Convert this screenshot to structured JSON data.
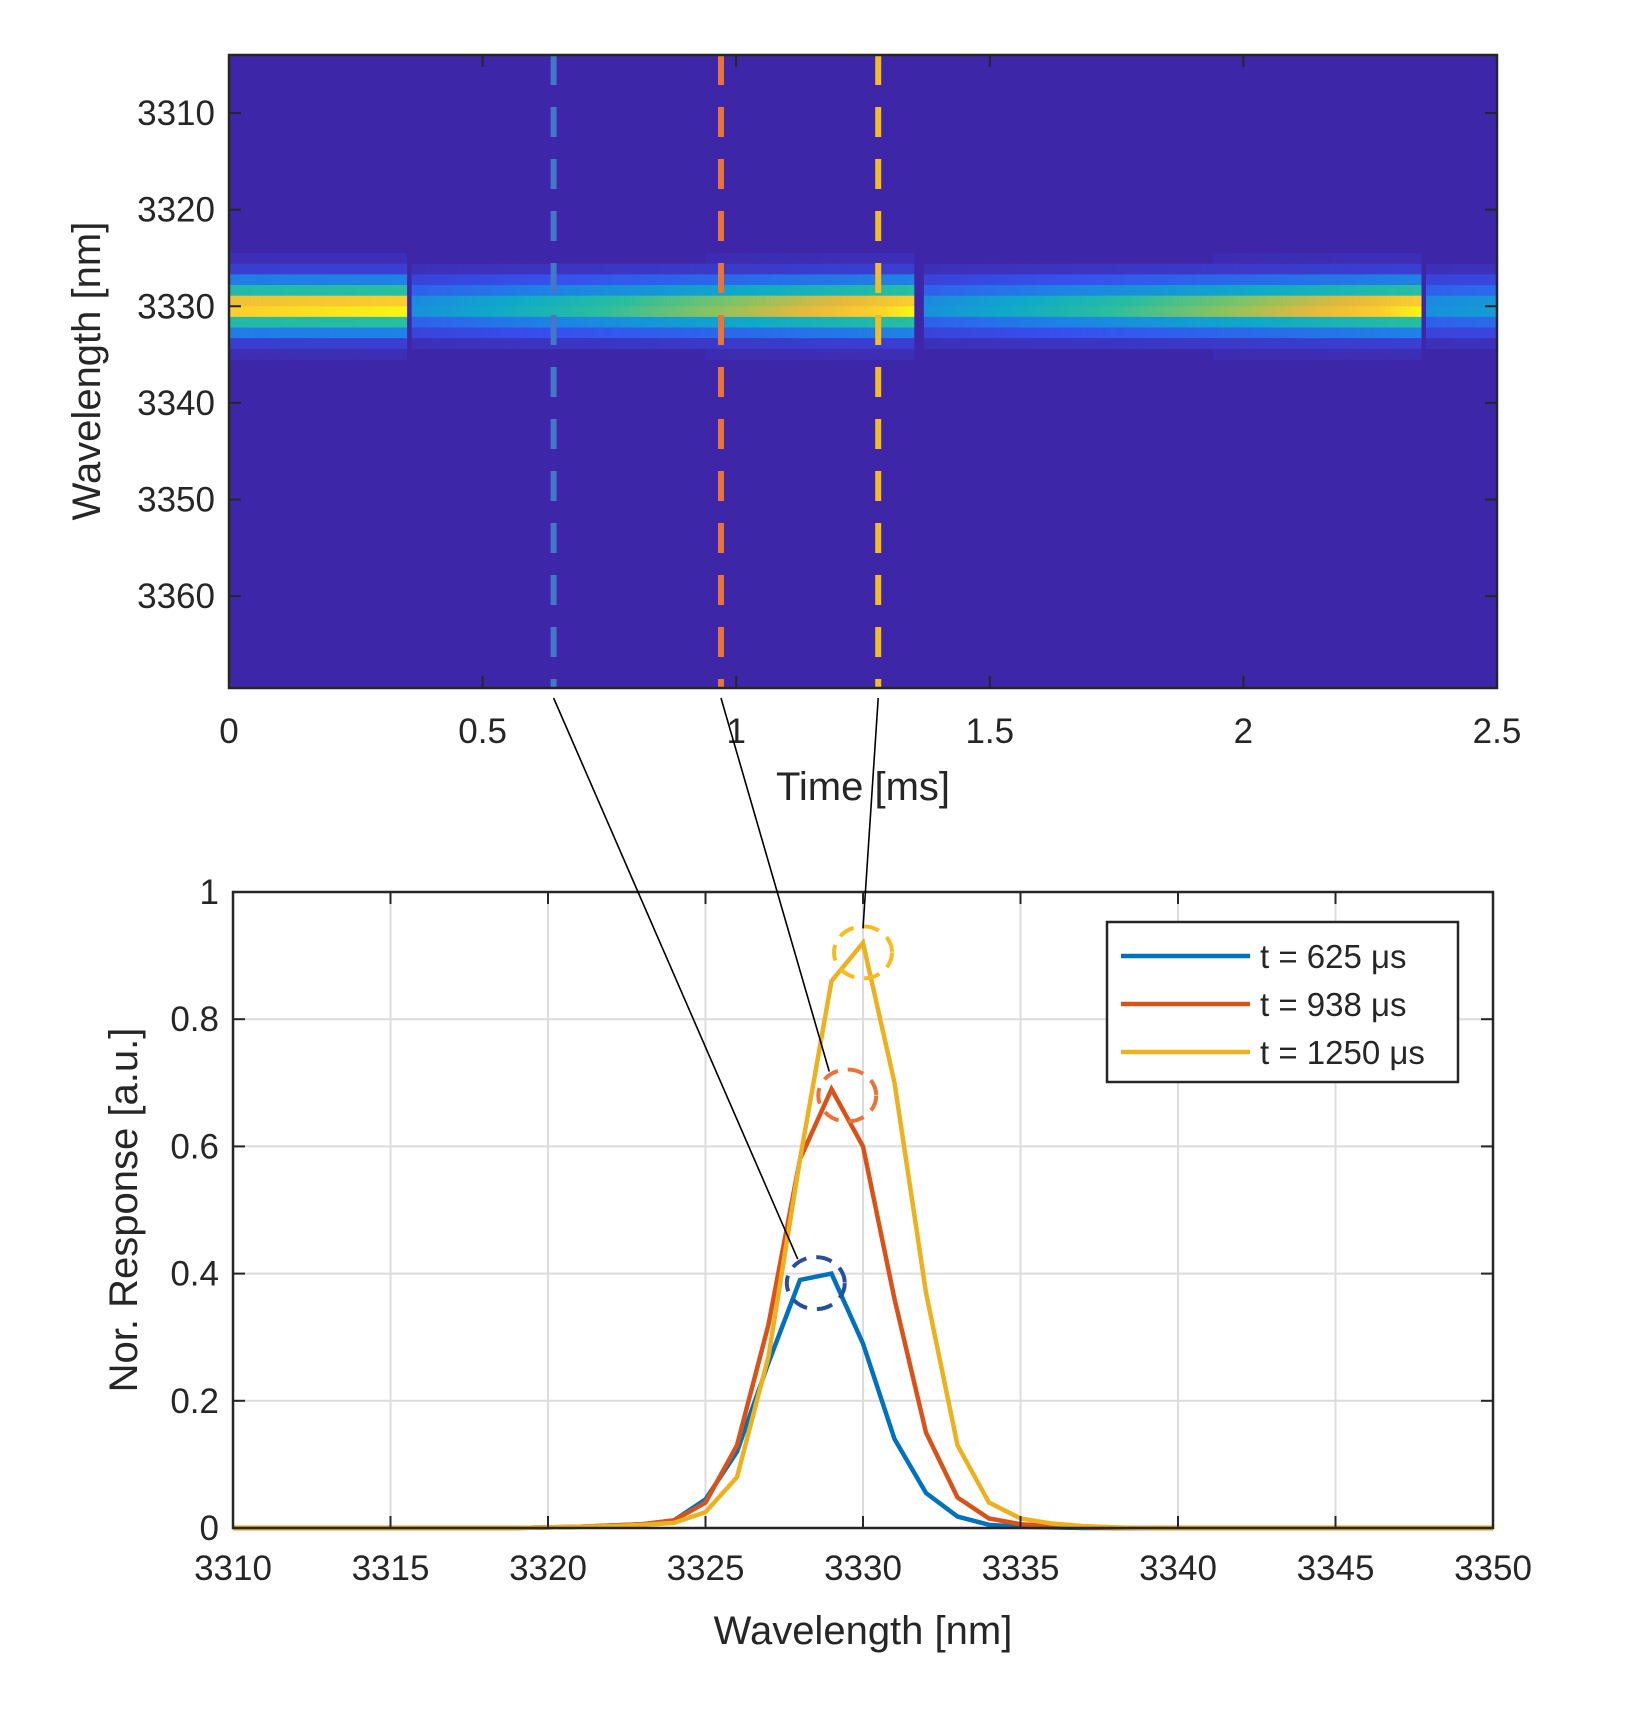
{
  "chart_data": [
    {
      "type": "heatmap",
      "xlabel": "Time [ms]",
      "ylabel": "Wavelength [nm]",
      "xlim": [
        0,
        2.5
      ],
      "ylim": [
        3304,
        3369.5
      ],
      "y_reversed": true,
      "xticks": [
        "0",
        "0.5",
        "1",
        "1.5",
        "2",
        "2.5"
      ],
      "xtick_values": [
        0,
        0.5,
        1,
        1.5,
        2,
        2.5
      ],
      "yticks": [
        "3310",
        "3320",
        "3330",
        "3340",
        "3350",
        "3360"
      ],
      "ytick_values": [
        3310,
        3320,
        3330,
        3340,
        3350,
        3360
      ],
      "colormap": "parula",
      "band_center_nm": 3330,
      "pulses": [
        {
          "start_ms": 0,
          "end_ms": 0.35,
          "intensity_start": 0.95,
          "intensity_end": 1.0
        },
        {
          "start_ms": 0.36,
          "end_ms": 1.35,
          "intensity_start": 0.4,
          "intensity_end": 1.0
        },
        {
          "start_ms": 1.37,
          "end_ms": 2.35,
          "intensity_start": 0.4,
          "intensity_end": 1.0
        },
        {
          "start_ms": 2.36,
          "end_ms": 2.5,
          "intensity_start": 0.4,
          "intensity_end": 0.45
        }
      ],
      "markers": [
        {
          "time_ms": 0.64,
          "color": "#4477c8",
          "style": "dashed"
        },
        {
          "time_ms": 0.97,
          "color": "#e8743a",
          "style": "dashed"
        },
        {
          "time_ms": 1.28,
          "color": "#f5bd1f",
          "style": "dashed"
        }
      ]
    },
    {
      "type": "line",
      "xlabel": "Wavelength [nm]",
      "ylabel": "Nor. Response [a.u.]",
      "xlim": [
        3310,
        3350
      ],
      "ylim": [
        0,
        1
      ],
      "grid": true,
      "legend_position": "top-right",
      "xticks": [
        "3310",
        "3315",
        "3320",
        "3325",
        "3330",
        "3335",
        "3340",
        "3345",
        "3350"
      ],
      "xtick_values": [
        3310,
        3315,
        3320,
        3325,
        3330,
        3335,
        3340,
        3345,
        3350
      ],
      "yticks": [
        "0",
        "0.2",
        "0.4",
        "0.6",
        "0.8",
        "1"
      ],
      "ytick_values": [
        0,
        0.2,
        0.4,
        0.6,
        0.8,
        1
      ],
      "x": [
        3310,
        3311,
        3312,
        3313,
        3314,
        3315,
        3316,
        3317,
        3318,
        3319,
        3320,
        3321,
        3322,
        3323,
        3324,
        3325,
        3326,
        3327,
        3328,
        3329,
        3330,
        3331,
        3332,
        3333,
        3334,
        3335,
        3336,
        3337,
        3338,
        3339,
        3340,
        3341,
        3342,
        3343,
        3344,
        3345,
        3346,
        3347,
        3348,
        3349,
        3350
      ],
      "series": [
        {
          "name": "t = 625 μs",
          "color": "#0072bd",
          "values": [
            0,
            0,
            0,
            0,
            0,
            0,
            0,
            0,
            0,
            0,
            0.001,
            0.002,
            0.004,
            0.006,
            0.012,
            0.045,
            0.12,
            0.26,
            0.39,
            0.4,
            0.29,
            0.14,
            0.055,
            0.018,
            0.005,
            0.002,
            0.001,
            0,
            0,
            0,
            0,
            0,
            0,
            0,
            0,
            0,
            0,
            0,
            0,
            0,
            0
          ]
        },
        {
          "name": "t = 938 μs",
          "color": "#d95319",
          "values": [
            0,
            0,
            0,
            0,
            0,
            0,
            0,
            0,
            0,
            0,
            0.001,
            0.002,
            0.004,
            0.006,
            0.012,
            0.04,
            0.13,
            0.32,
            0.58,
            0.69,
            0.6,
            0.36,
            0.15,
            0.048,
            0.015,
            0.006,
            0.003,
            0.001,
            0,
            0,
            0,
            0,
            0,
            0,
            0,
            0,
            0,
            0,
            0,
            0,
            0
          ]
        },
        {
          "name": "t = 1250 μs",
          "color": "#edb120",
          "values": [
            0,
            0,
            0,
            0,
            0,
            0,
            0,
            0,
            0,
            0,
            0.001,
            0.002,
            0.003,
            0.005,
            0.008,
            0.025,
            0.08,
            0.27,
            0.58,
            0.86,
            0.92,
            0.7,
            0.37,
            0.13,
            0.04,
            0.015,
            0.007,
            0.003,
            0.001,
            0,
            0,
            0,
            0,
            0,
            0,
            0,
            0,
            0,
            0,
            0,
            0
          ]
        }
      ],
      "peak_markers": [
        {
          "x": 3328.5,
          "y": 0.385,
          "color": "#2a4e9a"
        },
        {
          "x": 3329.5,
          "y": 0.68,
          "color": "#e8743a"
        },
        {
          "x": 3330,
          "y": 0.905,
          "color": "#f5bd1f"
        }
      ]
    }
  ]
}
